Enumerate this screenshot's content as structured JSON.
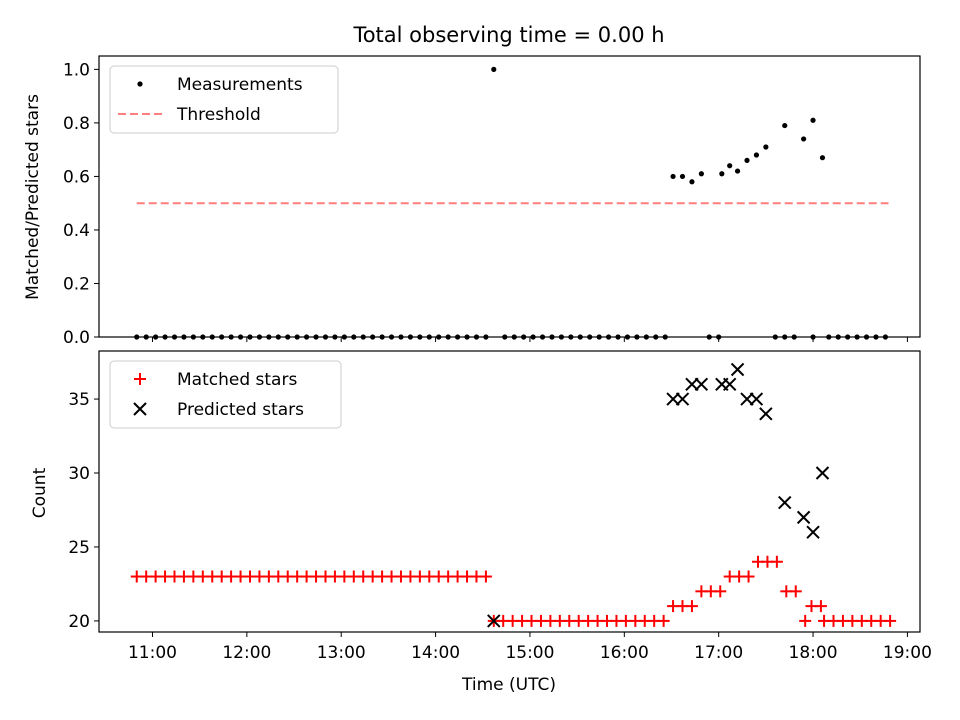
{
  "figure": {
    "title": "Total observing time = 0.00 h",
    "xlabel": "Time (UTC)"
  },
  "chart_data": [
    {
      "type": "scatter",
      "ylabel": "Matched/Predicted stars",
      "ylim": [
        0,
        1.05
      ],
      "yticks": [
        0.0,
        0.2,
        0.4,
        0.6,
        0.8,
        1.0
      ],
      "xlim": [
        "10:26",
        "19:08"
      ],
      "xticks": [
        "11:00",
        "12:00",
        "13:00",
        "14:00",
        "15:00",
        "16:00",
        "17:00",
        "18:00",
        "19:00"
      ],
      "legend_position": "upper-left",
      "threshold": {
        "name": "Threshold",
        "value": 0.5,
        "x_range": [
          "10:50",
          "18:48"
        ],
        "color": "#ff7f7f",
        "style": "dashed"
      },
      "series": [
        {
          "name": "Measurements",
          "color": "#000000",
          "points": [
            [
              "10:50",
              0
            ],
            [
              "10:56",
              0
            ],
            [
              "11:02",
              0
            ],
            [
              "11:08",
              0
            ],
            [
              "11:14",
              0
            ],
            [
              "11:20",
              0
            ],
            [
              "11:26",
              0
            ],
            [
              "11:32",
              0
            ],
            [
              "11:38",
              0
            ],
            [
              "11:44",
              0
            ],
            [
              "11:50",
              0
            ],
            [
              "11:56",
              0
            ],
            [
              "12:02",
              0
            ],
            [
              "12:08",
              0
            ],
            [
              "12:14",
              0
            ],
            [
              "12:20",
              0
            ],
            [
              "12:26",
              0
            ],
            [
              "12:32",
              0
            ],
            [
              "12:38",
              0
            ],
            [
              "12:44",
              0
            ],
            [
              "12:50",
              0
            ],
            [
              "12:56",
              0
            ],
            [
              "13:02",
              0
            ],
            [
              "13:08",
              0
            ],
            [
              "13:14",
              0
            ],
            [
              "13:20",
              0
            ],
            [
              "13:26",
              0
            ],
            [
              "13:32",
              0
            ],
            [
              "13:38",
              0
            ],
            [
              "13:44",
              0
            ],
            [
              "13:50",
              0
            ],
            [
              "13:56",
              0
            ],
            [
              "14:02",
              0
            ],
            [
              "14:08",
              0
            ],
            [
              "14:14",
              0
            ],
            [
              "14:20",
              0
            ],
            [
              "14:26",
              0
            ],
            [
              "14:32",
              0
            ],
            [
              "14:37",
              1.0
            ],
            [
              "14:44",
              0
            ],
            [
              "14:50",
              0
            ],
            [
              "14:56",
              0
            ],
            [
              "15:02",
              0
            ],
            [
              "15:08",
              0
            ],
            [
              "15:14",
              0
            ],
            [
              "15:20",
              0
            ],
            [
              "15:26",
              0
            ],
            [
              "15:32",
              0
            ],
            [
              "15:38",
              0
            ],
            [
              "15:44",
              0
            ],
            [
              "15:50",
              0
            ],
            [
              "15:56",
              0
            ],
            [
              "16:02",
              0
            ],
            [
              "16:08",
              0
            ],
            [
              "16:14",
              0
            ],
            [
              "16:20",
              0
            ],
            [
              "16:26",
              0
            ],
            [
              "16:31",
              0.6
            ],
            [
              "16:37",
              0.6
            ],
            [
              "16:43",
              0.58
            ],
            [
              "16:49",
              0.61
            ],
            [
              "16:54",
              0
            ],
            [
              "17:00",
              0
            ],
            [
              "17:02",
              0.61
            ],
            [
              "17:07",
              0.64
            ],
            [
              "17:12",
              0.62
            ],
            [
              "17:18",
              0.66
            ],
            [
              "17:24",
              0.68
            ],
            [
              "17:30",
              0.71
            ],
            [
              "17:36",
              0
            ],
            [
              "17:42",
              0
            ],
            [
              "17:48",
              0
            ],
            [
              "17:42",
              0.79
            ],
            [
              "17:54",
              0.74
            ],
            [
              "18:00",
              0.81
            ],
            [
              "18:00",
              0
            ],
            [
              "18:06",
              0.67
            ],
            [
              "18:10",
              0
            ],
            [
              "18:16",
              0
            ],
            [
              "18:22",
              0
            ],
            [
              "18:28",
              0
            ],
            [
              "18:34",
              0
            ],
            [
              "18:40",
              0
            ],
            [
              "18:46",
              0
            ]
          ]
        }
      ]
    },
    {
      "type": "scatter",
      "ylabel": "Count",
      "ylim": [
        19.25,
        38.25
      ],
      "yticks": [
        20,
        25,
        30,
        35
      ],
      "xlim": [
        "10:26",
        "19:08"
      ],
      "xticks": [
        "11:00",
        "12:00",
        "13:00",
        "14:00",
        "15:00",
        "16:00",
        "17:00",
        "18:00",
        "19:00"
      ],
      "legend_position": "upper-left",
      "series": [
        {
          "name": "Matched stars",
          "marker": "plus",
          "color": "#ff0000",
          "points": [
            [
              "10:50",
              23
            ],
            [
              "10:56",
              23
            ],
            [
              "11:02",
              23
            ],
            [
              "11:08",
              23
            ],
            [
              "11:14",
              23
            ],
            [
              "11:20",
              23
            ],
            [
              "11:26",
              23
            ],
            [
              "11:32",
              23
            ],
            [
              "11:38",
              23
            ],
            [
              "11:44",
              23
            ],
            [
              "11:50",
              23
            ],
            [
              "11:56",
              23
            ],
            [
              "12:02",
              23
            ],
            [
              "12:08",
              23
            ],
            [
              "12:14",
              23
            ],
            [
              "12:20",
              23
            ],
            [
              "12:26",
              23
            ],
            [
              "12:32",
              23
            ],
            [
              "12:38",
              23
            ],
            [
              "12:44",
              23
            ],
            [
              "12:50",
              23
            ],
            [
              "12:56",
              23
            ],
            [
              "13:02",
              23
            ],
            [
              "13:08",
              23
            ],
            [
              "13:14",
              23
            ],
            [
              "13:20",
              23
            ],
            [
              "13:26",
              23
            ],
            [
              "13:32",
              23
            ],
            [
              "13:38",
              23
            ],
            [
              "13:44",
              23
            ],
            [
              "13:50",
              23
            ],
            [
              "13:56",
              23
            ],
            [
              "14:02",
              23
            ],
            [
              "14:08",
              23
            ],
            [
              "14:14",
              23
            ],
            [
              "14:20",
              23
            ],
            [
              "14:26",
              23
            ],
            [
              "14:32",
              23
            ],
            [
              "14:37",
              20
            ],
            [
              "14:43",
              20
            ],
            [
              "14:49",
              20
            ],
            [
              "14:55",
              20
            ],
            [
              "15:01",
              20
            ],
            [
              "15:07",
              20
            ],
            [
              "15:13",
              20
            ],
            [
              "15:19",
              20
            ],
            [
              "15:25",
              20
            ],
            [
              "15:31",
              20
            ],
            [
              "15:37",
              20
            ],
            [
              "15:43",
              20
            ],
            [
              "15:49",
              20
            ],
            [
              "15:55",
              20
            ],
            [
              "16:01",
              20
            ],
            [
              "16:07",
              20
            ],
            [
              "16:13",
              20
            ],
            [
              "16:19",
              20
            ],
            [
              "16:25",
              20
            ],
            [
              "16:31",
              21
            ],
            [
              "16:37",
              21
            ],
            [
              "16:43",
              21
            ],
            [
              "16:49",
              22
            ],
            [
              "16:55",
              22
            ],
            [
              "17:01",
              22
            ],
            [
              "17:07",
              23
            ],
            [
              "17:13",
              23
            ],
            [
              "17:19",
              23
            ],
            [
              "17:25",
              24
            ],
            [
              "17:31",
              24
            ],
            [
              "17:37",
              24
            ],
            [
              "17:43",
              22
            ],
            [
              "17:49",
              22
            ],
            [
              "17:55",
              20
            ],
            [
              "17:59",
              21
            ],
            [
              "18:05",
              21
            ],
            [
              "18:07",
              20
            ],
            [
              "18:13",
              20
            ],
            [
              "18:19",
              20
            ],
            [
              "18:25",
              20
            ],
            [
              "18:31",
              20
            ],
            [
              "18:37",
              20
            ],
            [
              "18:43",
              20
            ],
            [
              "18:49",
              20
            ]
          ]
        },
        {
          "name": "Predicted stars",
          "marker": "x",
          "color": "#000000",
          "points": [
            [
              "14:37",
              20
            ],
            [
              "16:31",
              35
            ],
            [
              "16:37",
              35
            ],
            [
              "16:43",
              36
            ],
            [
              "16:49",
              36
            ],
            [
              "17:02",
              36
            ],
            [
              "17:07",
              36
            ],
            [
              "17:12",
              37
            ],
            [
              "17:18",
              35
            ],
            [
              "17:24",
              35
            ],
            [
              "17:30",
              34
            ],
            [
              "17:42",
              28
            ],
            [
              "17:54",
              27
            ],
            [
              "18:00",
              26
            ],
            [
              "18:06",
              30
            ]
          ]
        }
      ]
    }
  ]
}
